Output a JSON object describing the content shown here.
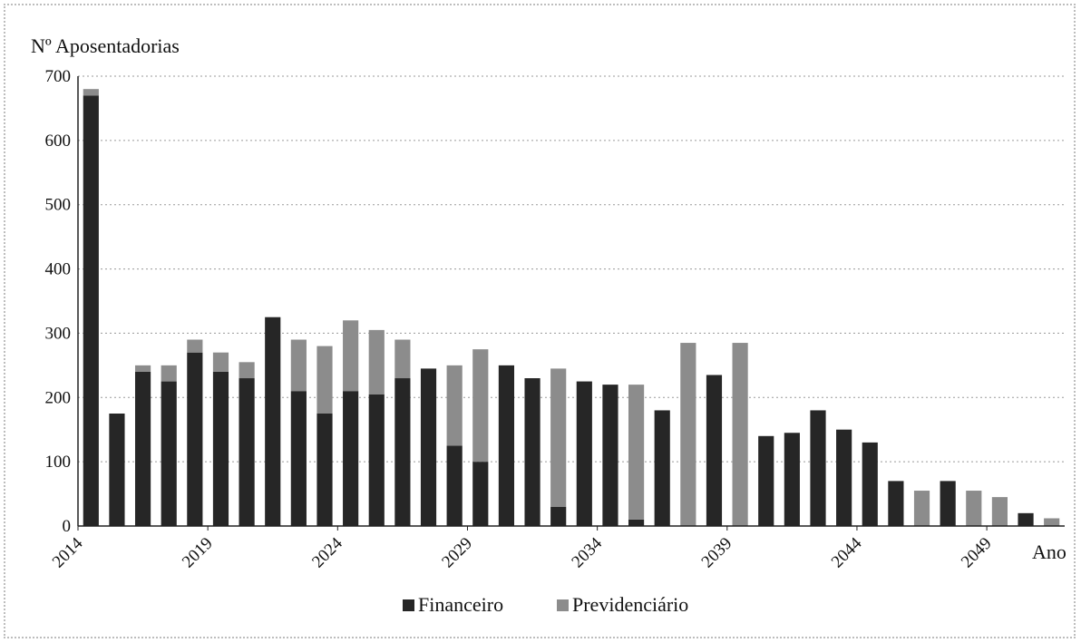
{
  "chart_data": {
    "type": "bar",
    "stacked": true,
    "ylabel": "Nº Aposentadorias",
    "xlabel": "Ano",
    "ylim": [
      0,
      700
    ],
    "yticks": [
      0,
      100,
      200,
      300,
      400,
      500,
      600,
      700
    ],
    "grid": "horizontal dotted",
    "legend_position": "bottom",
    "x_tick_labels": [
      "2014",
      "2019",
      "2024",
      "2029",
      "2034",
      "2039",
      "2044",
      "2049"
    ],
    "categories": [
      "2014",
      "2015",
      "2016",
      "2017",
      "2018",
      "2019",
      "2020",
      "2021",
      "2022",
      "2023",
      "2024",
      "2025",
      "2026",
      "2027",
      "2028",
      "2029",
      "2030",
      "2031",
      "2032",
      "2033",
      "2034",
      "2035",
      "2036",
      "2037",
      "2038",
      "2039",
      "2040",
      "2041",
      "2042",
      "2043",
      "2044",
      "2045",
      "2046",
      "2047",
      "2048",
      "2049",
      "2050",
      "2051"
    ],
    "series": [
      {
        "name": "Financeiro",
        "color": "#262626",
        "values": [
          670,
          175,
          240,
          225,
          270,
          240,
          230,
          325,
          210,
          175,
          210,
          205,
          230,
          245,
          125,
          100,
          250,
          230,
          30,
          225,
          220,
          10,
          180,
          0,
          235,
          0,
          140,
          145,
          180,
          150,
          130,
          70,
          0,
          70,
          0,
          0,
          20,
          0
        ]
      },
      {
        "name": "Previdenciário",
        "color": "#8c8c8c",
        "values": [
          10,
          0,
          10,
          25,
          20,
          30,
          25,
          0,
          80,
          105,
          110,
          100,
          60,
          0,
          125,
          175,
          0,
          0,
          215,
          0,
          0,
          210,
          0,
          285,
          0,
          285,
          0,
          0,
          0,
          0,
          0,
          0,
          55,
          0,
          55,
          45,
          0,
          12
        ]
      }
    ]
  }
}
